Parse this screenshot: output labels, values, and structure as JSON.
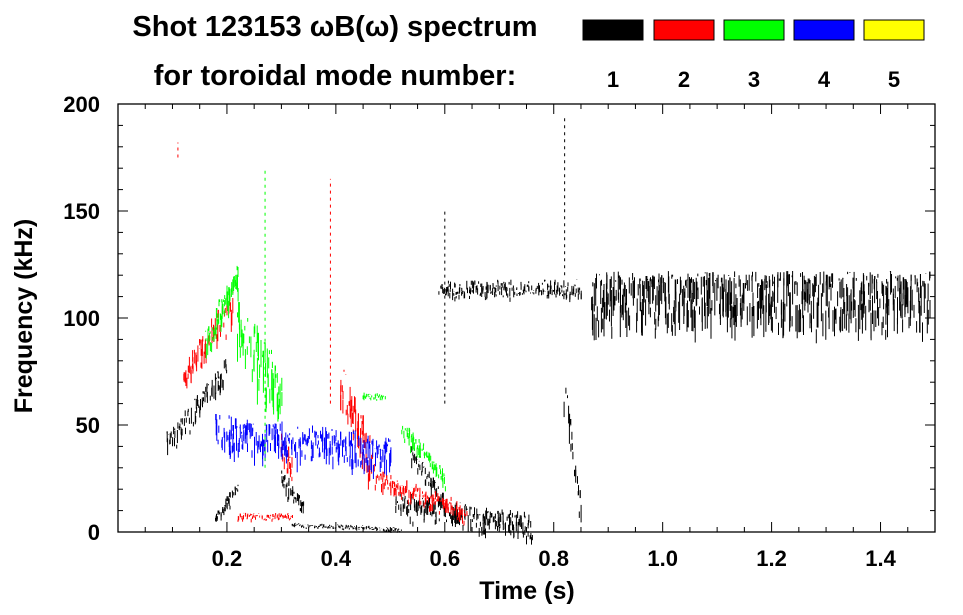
{
  "chart_data": {
    "type": "heatmap",
    "title_line1": "Shot 123153 ωB(ω) spectrum",
    "title_line2": "for toroidal mode number:",
    "xlabel": "Time (s)",
    "ylabel": "Frequency (kHz)",
    "xlim": [
      0.0,
      1.5
    ],
    "ylim": [
      0,
      200
    ],
    "x_ticks": [
      "0.2",
      "0.4",
      "0.6",
      "0.8",
      "1.0",
      "1.2",
      "1.4"
    ],
    "x_tick_values": [
      0.2,
      0.4,
      0.6,
      0.8,
      1.0,
      1.2,
      1.4
    ],
    "y_ticks": [
      "0",
      "50",
      "100",
      "150",
      "200"
    ],
    "y_tick_values": [
      0,
      50,
      100,
      150,
      200
    ],
    "legend_position": "top-right",
    "legend": [
      {
        "label": "1",
        "color": "#000000"
      },
      {
        "label": "2",
        "color": "#ff0000"
      },
      {
        "label": "3",
        "color": "#00ff00"
      },
      {
        "label": "4",
        "color": "#0000ff"
      },
      {
        "label": "5",
        "color": "#ffff00"
      }
    ],
    "regions": [
      {
        "mode": 1,
        "kind": "chirp",
        "t": [
          0.09,
          0.2
        ],
        "f": [
          40,
          75
        ],
        "spread": 10
      },
      {
        "mode": 1,
        "kind": "chirp",
        "t": [
          0.18,
          0.22
        ],
        "f": [
          5,
          20
        ],
        "spread": 6
      },
      {
        "mode": 1,
        "kind": "chirp",
        "t": [
          0.3,
          0.34
        ],
        "f": [
          25,
          10
        ],
        "spread": 8
      },
      {
        "mode": 1,
        "kind": "chirp",
        "t": [
          0.32,
          0.52
        ],
        "f": [
          3,
          1
        ],
        "spread": 2
      },
      {
        "mode": 1,
        "kind": "chirp",
        "t": [
          0.51,
          0.76
        ],
        "f": [
          12,
          2
        ],
        "spread": 10
      },
      {
        "mode": 1,
        "kind": "chirp",
        "t": [
          0.54,
          0.6
        ],
        "f": [
          36,
          12
        ],
        "spread": 8
      },
      {
        "mode": 1,
        "kind": "chirp",
        "t": [
          0.82,
          0.85
        ],
        "f": [
          65,
          10
        ],
        "spread": 14
      },
      {
        "mode": 1,
        "kind": "band",
        "t": [
          0.59,
          0.85
        ],
        "f": [
          107,
          118
        ]
      },
      {
        "mode": 1,
        "kind": "band",
        "t": [
          0.87,
          1.49
        ],
        "f": [
          88,
          122
        ]
      },
      {
        "mode": 2,
        "kind": "chirp",
        "t": [
          0.12,
          0.21
        ],
        "f": [
          70,
          105
        ],
        "spread": 14
      },
      {
        "mode": 2,
        "kind": "chirp",
        "t": [
          0.3,
          0.32
        ],
        "f": [
          40,
          28
        ],
        "spread": 12
      },
      {
        "mode": 2,
        "kind": "chirp",
        "t": [
          0.41,
          0.47
        ],
        "f": [
          65,
          30
        ],
        "spread": 20
      },
      {
        "mode": 2,
        "kind": "chirp",
        "t": [
          0.47,
          0.64
        ],
        "f": [
          25,
          8
        ],
        "spread": 8
      },
      {
        "mode": 2,
        "kind": "chirp",
        "t": [
          0.22,
          0.32
        ],
        "f": [
          7,
          7
        ],
        "spread": 3
      },
      {
        "mode": 3,
        "kind": "chirp",
        "t": [
          0.16,
          0.22
        ],
        "f": [
          85,
          120
        ],
        "spread": 14
      },
      {
        "mode": 3,
        "kind": "chirp",
        "t": [
          0.22,
          0.3
        ],
        "f": [
          95,
          60
        ],
        "spread": 25
      },
      {
        "mode": 3,
        "kind": "chirp",
        "t": [
          0.45,
          0.49
        ],
        "f": [
          63,
          63
        ],
        "spread": 3
      },
      {
        "mode": 3,
        "kind": "chirp",
        "t": [
          0.52,
          0.6
        ],
        "f": [
          48,
          25
        ],
        "spread": 8
      },
      {
        "mode": 4,
        "kind": "chirp",
        "t": [
          0.18,
          0.5
        ],
        "f": [
          45,
          35
        ],
        "spread": 15
      }
    ],
    "spikes": [
      {
        "mode": 1,
        "t": 0.6,
        "f": [
          60,
          150
        ]
      },
      {
        "mode": 1,
        "t": 0.82,
        "f": [
          120,
          195
        ]
      },
      {
        "mode": 2,
        "t": 0.39,
        "f": [
          60,
          165
        ]
      },
      {
        "mode": 3,
        "t": 0.27,
        "f": [
          30,
          170
        ]
      },
      {
        "mode": 2,
        "t": 0.11,
        "f": [
          175,
          182
        ]
      }
    ]
  }
}
